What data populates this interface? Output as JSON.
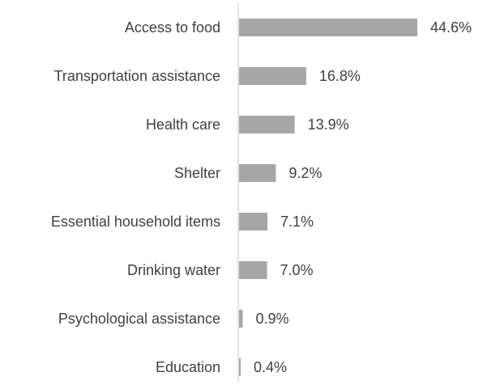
{
  "chart_data": {
    "type": "bar",
    "orientation": "horizontal",
    "categories": [
      "Access to food",
      "Transportation assistance",
      "Health care",
      "Shelter",
      "Essential household items",
      "Drinking water",
      "Psychological assistance",
      "Education"
    ],
    "values": [
      44.6,
      16.8,
      13.9,
      9.2,
      7.1,
      7.0,
      0.9,
      0.4
    ],
    "value_labels": [
      "44.6%",
      "16.8%",
      "13.9%",
      "9.2%",
      "7.1%",
      "7.0%",
      "0.9%",
      "0.4%"
    ],
    "title": "",
    "xlabel": "",
    "ylabel": "",
    "xlim": [
      0,
      44.6
    ],
    "grid": false,
    "legend": "none",
    "bar_color": "#a6a6a6",
    "axis_color": "#d9d9d9",
    "text_color": "#404040"
  }
}
